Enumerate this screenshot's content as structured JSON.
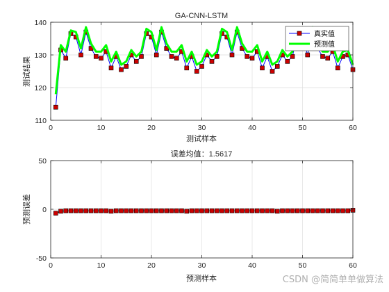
{
  "figure": {
    "watermark": "CSDN @简简单单做算法"
  },
  "chart_data": [
    {
      "type": "line",
      "title": "GA-CNN-LSTM",
      "xlabel": "测试样本",
      "ylabel": "测试结果",
      "xlim": [
        0,
        60
      ],
      "ylim": [
        110,
        140
      ],
      "xticks": [
        0,
        10,
        20,
        30,
        40,
        50,
        60
      ],
      "yticks": [
        110,
        120,
        130,
        140
      ],
      "grid": true,
      "legend_position": "top-right",
      "x": [
        1,
        2,
        3,
        4,
        5,
        6,
        7,
        8,
        9,
        10,
        11,
        12,
        13,
        14,
        15,
        16,
        17,
        18,
        19,
        20,
        21,
        22,
        23,
        24,
        25,
        26,
        27,
        28,
        29,
        30,
        31,
        32,
        33,
        34,
        35,
        36,
        37,
        38,
        39,
        40,
        41,
        42,
        43,
        44,
        45,
        46,
        47,
        48,
        49,
        50,
        51,
        52,
        53,
        54,
        55,
        56,
        57,
        58,
        59,
        60
      ],
      "series": [
        {
          "name": "真实值",
          "color": "#0000ff",
          "marker_color": "#cc0000",
          "values": [
            114,
            131.5,
            129,
            136.5,
            135.5,
            130,
            137,
            132,
            129.5,
            129,
            131,
            126,
            129.5,
            125.5,
            126.5,
            130,
            128,
            129.5,
            136.5,
            135.5,
            130,
            137,
            132,
            129.5,
            129,
            131,
            126,
            129.5,
            125,
            126.5,
            130,
            128,
            129.5,
            136.5,
            135.5,
            130,
            137,
            132,
            129.5,
            129,
            131,
            126,
            129.5,
            125,
            126.5,
            130,
            128,
            129.5,
            136.5,
            135.5,
            130,
            137,
            132,
            129.5,
            129,
            131,
            126,
            129.5,
            130,
            125.5
          ]
        },
        {
          "name": "预测值",
          "color": "#00ff00",
          "values": [
            118,
            133,
            131,
            137.5,
            137,
            132,
            138.5,
            133.5,
            131,
            131,
            133,
            128,
            131,
            127,
            128,
            131.5,
            129.5,
            131,
            138,
            137,
            131.5,
            138.5,
            133.5,
            131,
            131,
            133,
            128,
            131,
            127,
            128,
            131.5,
            129.5,
            131,
            138,
            137,
            131.5,
            138.5,
            133.5,
            131,
            131,
            133,
            128,
            131,
            127,
            128,
            131.5,
            129.5,
            131,
            138,
            137,
            131.5,
            138.5,
            133.5,
            131,
            131,
            133,
            128,
            131,
            131.5,
            127
          ]
        }
      ]
    },
    {
      "type": "line",
      "title": "误差均值：1.5617",
      "xlabel": "预测样本",
      "ylabel": "预测误差",
      "xlim": [
        0,
        60
      ],
      "ylim": [
        -50,
        50
      ],
      "xticks": [
        0,
        10,
        20,
        30,
        40,
        50,
        60
      ],
      "yticks": [
        -50,
        0,
        50
      ],
      "grid": true,
      "series": [
        {
          "color": "#000000",
          "marker_color": "#cc0000",
          "values": [
            -4,
            -2,
            -1.5,
            -1.5,
            -1.5,
            -1.5,
            -1.5,
            -1.5,
            -1.5,
            -1.5,
            -1.5,
            -2,
            -1.5,
            -1.5,
            -1.5,
            -1.5,
            -1.5,
            -1.5,
            -1.5,
            -1.5,
            -1.5,
            -1.5,
            -1.5,
            -1.5,
            -1.5,
            -1.5,
            -2,
            -1.5,
            -1.5,
            -1.5,
            -1.5,
            -1.5,
            -1.5,
            -1.5,
            -1.5,
            -1.5,
            -1.5,
            -1.5,
            -1.5,
            -1.5,
            -1.5,
            -1.5,
            -1.5,
            -1.5,
            -2,
            -1.5,
            -1.5,
            -1.5,
            -1.5,
            -1.5,
            -1.5,
            -1.5,
            -1.5,
            -1.5,
            -1.5,
            -1.5,
            -1.5,
            -1.5,
            -1.5,
            -1
          ]
        }
      ]
    }
  ]
}
